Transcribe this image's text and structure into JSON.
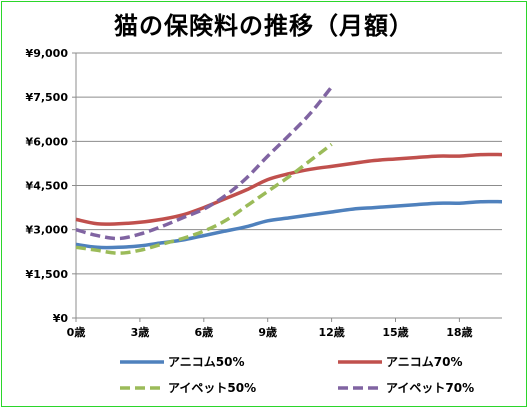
{
  "chart_data": {
    "type": "line",
    "title": "猫の保険料の推移（月額）",
    "xlabel": "",
    "ylabel": "",
    "x_tick_labels": [
      "0歳",
      "3歳",
      "6歳",
      "9歳",
      "12歳",
      "15歳",
      "18歳"
    ],
    "y_tick_labels": [
      "¥0",
      "¥1,500",
      "¥3,000",
      "¥4,500",
      "¥6,000",
      "¥7,500",
      "¥9,000"
    ],
    "y_ticks": [
      0,
      1500,
      3000,
      4500,
      6000,
      7500,
      9000
    ],
    "ylim": [
      0,
      9000
    ],
    "xlim": [
      0,
      20
    ],
    "grid": "horizontal",
    "legend_position": "bottom",
    "series": [
      {
        "name": "アニコム50%",
        "color": "#4f81bd",
        "dashed": false,
        "x": [
          0,
          1,
          2,
          3,
          4,
          5,
          6,
          7,
          8,
          9,
          10,
          11,
          12,
          13,
          14,
          15,
          16,
          17,
          18,
          19,
          20
        ],
        "values": [
          2500,
          2400,
          2400,
          2450,
          2550,
          2650,
          2800,
          2950,
          3100,
          3300,
          3400,
          3500,
          3600,
          3700,
          3750,
          3800,
          3850,
          3900,
          3900,
          3950,
          3950
        ]
      },
      {
        "name": "アニコム70%",
        "color": "#c0504d",
        "dashed": false,
        "x": [
          0,
          1,
          2,
          3,
          4,
          5,
          6,
          7,
          8,
          9,
          10,
          11,
          12,
          13,
          14,
          15,
          16,
          17,
          18,
          19,
          20
        ],
        "values": [
          3350,
          3200,
          3200,
          3250,
          3350,
          3500,
          3750,
          4050,
          4350,
          4700,
          4900,
          5050,
          5150,
          5250,
          5350,
          5400,
          5450,
          5500,
          5500,
          5550,
          5550
        ]
      },
      {
        "name": "アイペット50%",
        "color": "#9bbb59",
        "dashed": true,
        "x": [
          0,
          1,
          2,
          3,
          4,
          5,
          6,
          7,
          8,
          9,
          10,
          11,
          12
        ],
        "values": [
          2400,
          2300,
          2200,
          2300,
          2500,
          2700,
          2950,
          3300,
          3800,
          4300,
          4800,
          5350,
          5900
        ]
      },
      {
        "name": "アイペット70%",
        "color": "#8064a2",
        "dashed": true,
        "x": [
          0,
          1,
          2,
          3,
          4,
          5,
          6,
          7,
          8,
          9,
          10,
          11,
          12
        ],
        "values": [
          3000,
          2800,
          2700,
          2850,
          3100,
          3400,
          3700,
          4150,
          4750,
          5500,
          6200,
          6950,
          7850
        ]
      }
    ]
  }
}
